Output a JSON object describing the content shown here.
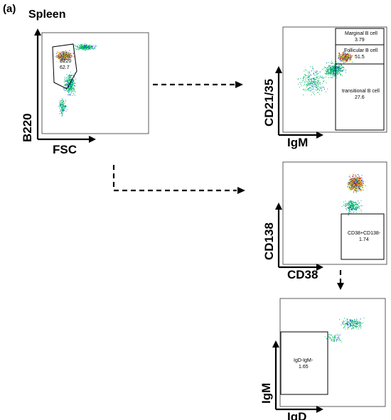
{
  "panel_label": "(a)",
  "tissue_title": "Spleen",
  "plots": [
    {
      "id": "b220-fsc",
      "y_axis_title": "B220",
      "x_axis_title": "FSC",
      "gates": [
        {
          "name": "B220",
          "value": "62.7"
        }
      ]
    },
    {
      "id": "cd2135-igm",
      "y_axis_title": "CD21/35",
      "x_axis_title": "IgM",
      "gates": [
        {
          "name": "Marginal B cell",
          "value": "3.79"
        },
        {
          "name": "Follicular B cell",
          "value": "51.5"
        },
        {
          "name": "transitional B cell",
          "value": "27.6"
        }
      ]
    },
    {
      "id": "cd138-cd38",
      "y_axis_title": "CD138",
      "x_axis_title": "CD38",
      "gates": [
        {
          "name": "CD38+CD138-",
          "value": "1.74"
        }
      ]
    },
    {
      "id": "igm-igd",
      "y_axis_title": "IgM",
      "x_axis_title": "IgD",
      "gates": [
        {
          "name": "IgD-IgM-",
          "value": "1.65"
        }
      ]
    }
  ],
  "colors": {
    "dots_low": "#1a1aff",
    "dots_mid": "#00c060",
    "dots_high": "#ffd000",
    "dots_peak": "#e02000"
  }
}
